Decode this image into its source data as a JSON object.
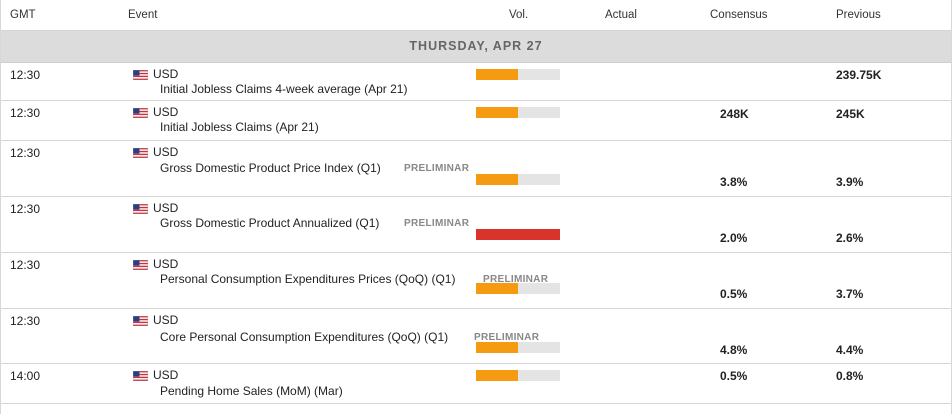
{
  "header": {
    "gmt": "GMT",
    "event": "Event",
    "vol": "Vol.",
    "actual": "Actual",
    "consensus": "Consensus",
    "previous": "Previous"
  },
  "day_label": "THURSDAY, APR 27",
  "colors": {
    "vol_medium": "#f59b12",
    "vol_high": "#d9342b",
    "vol_empty": "#e4e4e4"
  },
  "events": [
    {
      "time": "12:30",
      "flag_icon": "us-flag-icon",
      "currency": "USD",
      "name": "Initial Jobless Claims 4-week average (Apr 21)",
      "tag": "",
      "volatility": 0.5,
      "actual": "",
      "consensus": "",
      "previous": "239.75K"
    },
    {
      "time": "12:30",
      "flag_icon": "us-flag-icon",
      "currency": "USD",
      "name": "Initial Jobless Claims (Apr 21)",
      "tag": "",
      "volatility": 0.5,
      "actual": "",
      "consensus": "248K",
      "previous": "245K"
    },
    {
      "time": "12:30",
      "flag_icon": "us-flag-icon",
      "currency": "USD",
      "name": "Gross Domestic Product Price Index (Q1)",
      "tag": "PRELIMINAR",
      "volatility": 0.5,
      "actual": "",
      "consensus": "3.8%",
      "previous": "3.9%"
    },
    {
      "time": "12:30",
      "flag_icon": "us-flag-icon",
      "currency": "USD",
      "name": "Gross Domestic Product Annualized (Q1)",
      "tag": "PRELIMINAR",
      "volatility": 1.0,
      "actual": "",
      "consensus": "2.0%",
      "previous": "2.6%"
    },
    {
      "time": "12:30",
      "flag_icon": "us-flag-icon",
      "currency": "USD",
      "name": "Personal Consumption Expenditures Prices (QoQ) (Q1)",
      "tag": "PRELIMINAR",
      "volatility": 0.5,
      "actual": "",
      "consensus": "0.5%",
      "previous": "3.7%"
    },
    {
      "time": "12:30",
      "flag_icon": "us-flag-icon",
      "currency": "USD",
      "name": "Core Personal Consumption Expenditures (QoQ) (Q1)",
      "tag": "PRELIMINAR",
      "volatility": 0.5,
      "actual": "",
      "consensus": "4.8%",
      "previous": "4.4%"
    },
    {
      "time": "14:00",
      "flag_icon": "us-flag-icon",
      "currency": "USD",
      "name": "Pending Home Sales (MoM) (Mar)",
      "tag": "",
      "volatility": 0.5,
      "actual": "",
      "consensus": "0.5%",
      "previous": "0.8%"
    }
  ]
}
